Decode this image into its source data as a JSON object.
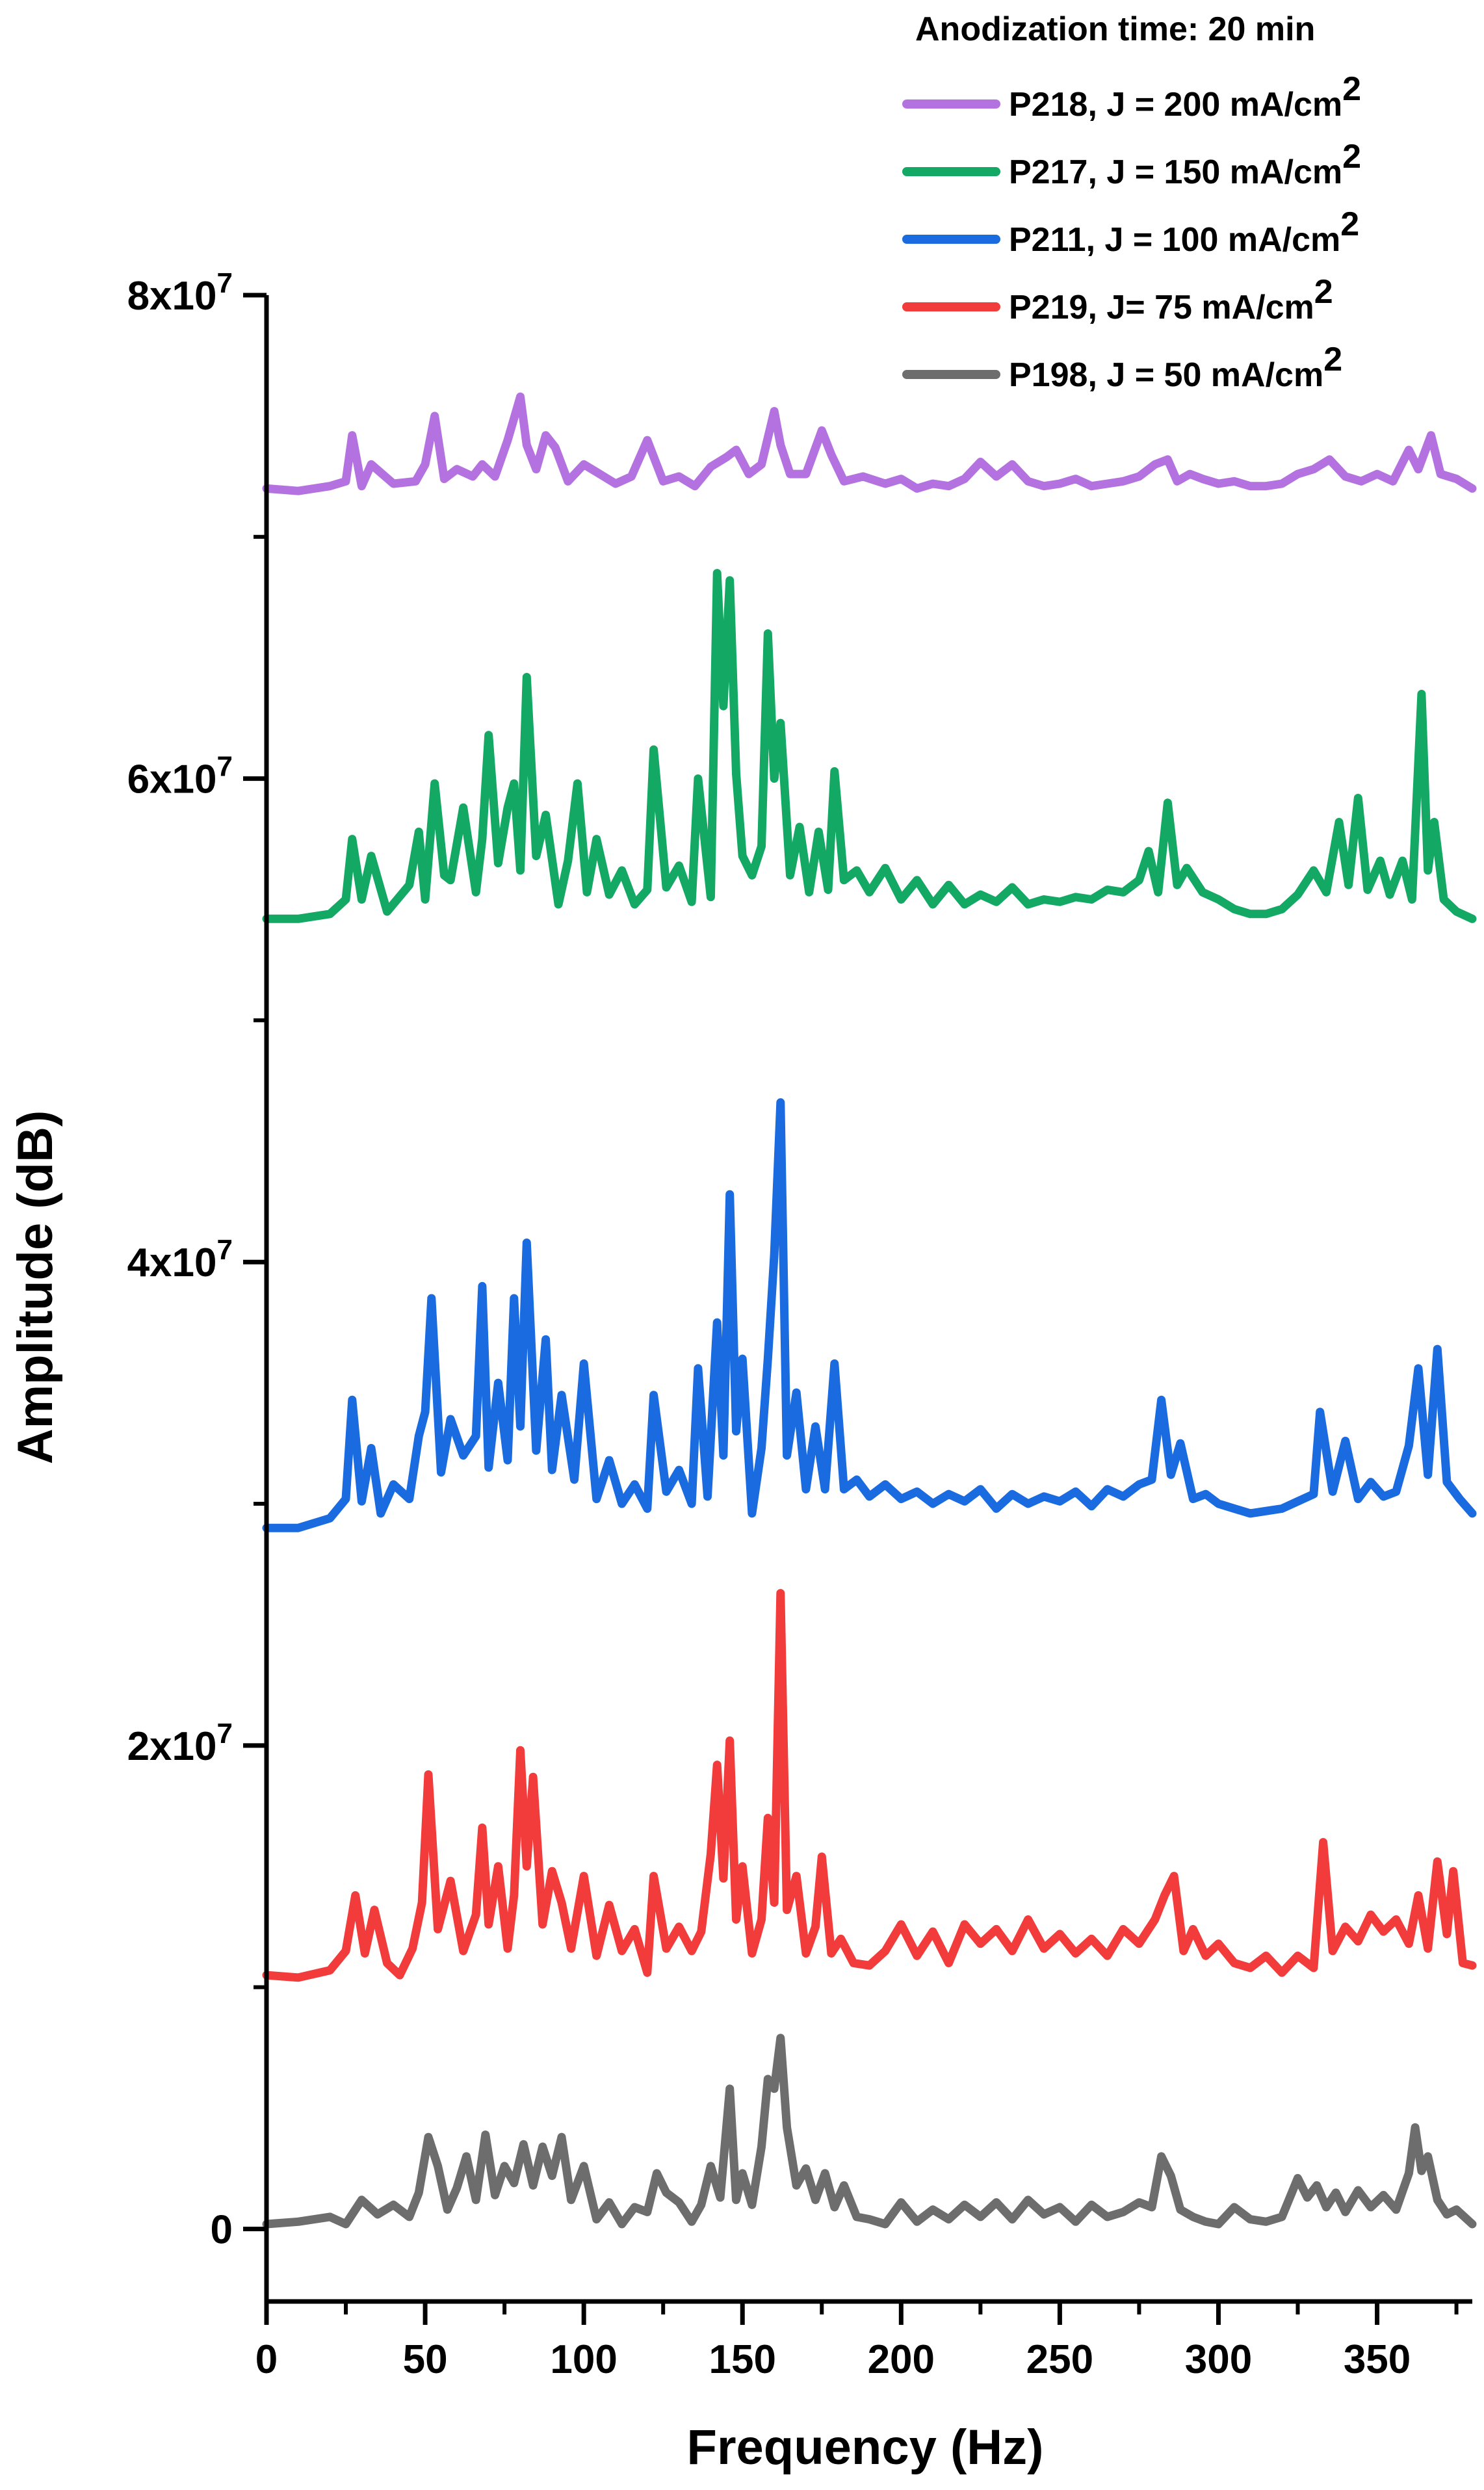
{
  "chart_data": {
    "type": "line",
    "title": "",
    "xlabel": "Frequency (Hz)",
    "ylabel": "Amplitude (dB)",
    "xlim": [
      0,
      380
    ],
    "ylim": [
      -3000000,
      80000000
    ],
    "x_ticks": [
      0,
      50,
      100,
      150,
      200,
      250,
      300,
      350
    ],
    "x_tick_labels": [
      "0",
      "50",
      "100",
      "150",
      "200",
      "250",
      "300",
      "350"
    ],
    "y_ticks": [
      0,
      20000000,
      40000000,
      60000000,
      80000000
    ],
    "y_tick_labels": [
      {
        "base": "0",
        "exp": ""
      },
      {
        "base": "2x10",
        "exp": "7"
      },
      {
        "base": "4x10",
        "exp": "7"
      },
      {
        "base": "6x10",
        "exp": "7"
      },
      {
        "base": "8x10",
        "exp": "7"
      }
    ],
    "grid": false,
    "legend": {
      "title": "Anodization time: 20 min",
      "placement": "top-right"
    },
    "series": [
      {
        "name": "P218, J = 200 mA/cm",
        "name_sup": "2",
        "color": "#b472e0",
        "x": [
          0,
          10,
          20,
          25,
          27,
          30,
          33,
          40,
          47,
          50,
          53,
          56,
          60,
          65,
          68,
          72,
          76,
          80,
          82,
          85,
          88,
          91,
          95,
          100,
          105,
          110,
          115,
          120,
          125,
          130,
          135,
          140,
          145,
          148,
          152,
          156,
          160,
          162,
          165,
          170,
          175,
          178,
          182,
          188,
          195,
          200,
          205,
          210,
          215,
          220,
          225,
          230,
          235,
          240,
          245,
          250,
          255,
          260,
          265,
          270,
          275,
          280,
          284,
          287,
          291,
          295,
          300,
          305,
          310,
          315,
          320,
          325,
          330,
          335,
          340,
          345,
          350,
          355,
          360,
          363,
          367,
          370,
          375,
          380
        ],
        "y": [
          72000000,
          71900000,
          72100000,
          72300000,
          74200000,
          72100000,
          73000000,
          72200000,
          72300000,
          73000000,
          75000000,
          72400000,
          72800000,
          72500000,
          73000000,
          72500000,
          74000000,
          75800000,
          73800000,
          72800000,
          74200000,
          73700000,
          72300000,
          73000000,
          72600000,
          72200000,
          72500000,
          74000000,
          72300000,
          72500000,
          72100000,
          72900000,
          73300000,
          73600000,
          72600000,
          73000000,
          75200000,
          73800000,
          72600000,
          72600000,
          74400000,
          73400000,
          72300000,
          72500000,
          72200000,
          72400000,
          72000000,
          72200000,
          72100000,
          72400000,
          73100000,
          72500000,
          73000000,
          72300000,
          72100000,
          72200000,
          72400000,
          72100000,
          72200000,
          72300000,
          72500000,
          73000000,
          73200000,
          72300000,
          72600000,
          72400000,
          72200000,
          72300000,
          72100000,
          72100000,
          72200000,
          72600000,
          72800000,
          73200000,
          72500000,
          72300000,
          72600000,
          72300000,
          73600000,
          72800000,
          74200000,
          72600000,
          72400000,
          72000000
        ]
      },
      {
        "name": "P217, J = 150 mA/cm",
        "name_sup": "2",
        "color": "#14a865",
        "x": [
          0,
          10,
          20,
          25,
          27,
          30,
          33,
          38,
          45,
          48,
          50,
          53,
          56,
          58,
          62,
          66,
          68,
          70,
          73,
          76,
          78,
          80,
          82,
          85,
          88,
          92,
          95,
          98,
          101,
          104,
          108,
          112,
          116,
          120,
          122,
          126,
          130,
          134,
          136,
          140,
          142,
          144,
          146,
          148,
          150,
          153,
          156,
          158,
          160,
          162,
          165,
          168,
          171,
          174,
          177,
          179,
          182,
          186,
          190,
          195,
          200,
          205,
          210,
          215,
          220,
          225,
          230,
          235,
          240,
          245,
          250,
          255,
          260,
          265,
          270,
          275,
          278,
          281,
          284,
          287,
          290,
          295,
          300,
          305,
          310,
          315,
          320,
          325,
          330,
          334,
          338,
          341,
          344,
          347,
          351,
          354,
          358,
          361,
          364,
          366,
          368,
          371,
          375,
          380
        ],
        "y": [
          54200000,
          54200000,
          54400000,
          55000000,
          57500000,
          55000000,
          56800000,
          54500000,
          55600000,
          57800000,
          55000000,
          59800000,
          56000000,
          55800000,
          58800000,
          55300000,
          57500000,
          61800000,
          56500000,
          58800000,
          59800000,
          56200000,
          64200000,
          56800000,
          58500000,
          54800000,
          56600000,
          59800000,
          55300000,
          57500000,
          55200000,
          56200000,
          54800000,
          55400000,
          61200000,
          55500000,
          56400000,
          54900000,
          60000000,
          55100000,
          68500000,
          63000000,
          68200000,
          60200000,
          56800000,
          56000000,
          57200000,
          66000000,
          60000000,
          62300000,
          56000000,
          58000000,
          55300000,
          57800000,
          55400000,
          60300000,
          55800000,
          56200000,
          55300000,
          56300000,
          55000000,
          55800000,
          54800000,
          55600000,
          54800000,
          55200000,
          54900000,
          55500000,
          54800000,
          55000000,
          54900000,
          55100000,
          55000000,
          55400000,
          55300000,
          55800000,
          57000000,
          55300000,
          59000000,
          55600000,
          56300000,
          55300000,
          55000000,
          54600000,
          54400000,
          54400000,
          54600000,
          55200000,
          56200000,
          55300000,
          58200000,
          55600000,
          59200000,
          55400000,
          56600000,
          55200000,
          56600000,
          55000000,
          63500000,
          56200000,
          58200000,
          55000000,
          54500000,
          54200000
        ]
      },
      {
        "name": "P211, J = 100 mA/cm",
        "name_sup": "2",
        "color": "#1a6ae0",
        "x": [
          0,
          10,
          20,
          25,
          27,
          30,
          33,
          36,
          40,
          45,
          48,
          50,
          52,
          55,
          58,
          62,
          66,
          68,
          70,
          73,
          76,
          78,
          80,
          82,
          85,
          88,
          90,
          93,
          97,
          100,
          104,
          108,
          112,
          116,
          120,
          122,
          126,
          130,
          134,
          136,
          139,
          142,
          144,
          146,
          148,
          150,
          153,
          156,
          158,
          160,
          162,
          164,
          167,
          170,
          173,
          176,
          179,
          182,
          186,
          190,
          195,
          200,
          205,
          210,
          215,
          220,
          225,
          230,
          235,
          240,
          245,
          250,
          255,
          260,
          265,
          270,
          275,
          279,
          282,
          285,
          288,
          292,
          296,
          300,
          305,
          310,
          315,
          320,
          325,
          330,
          332,
          336,
          340,
          344,
          348,
          352,
          356,
          360,
          363,
          366,
          369,
          372,
          376,
          380
        ],
        "y": [
          29000000,
          29000000,
          29400000,
          30200000,
          34300000,
          30100000,
          32300000,
          29600000,
          30800000,
          30200000,
          32800000,
          33800000,
          38500000,
          31300000,
          33500000,
          32000000,
          32800000,
          39000000,
          31500000,
          35000000,
          31800000,
          38500000,
          33200000,
          40800000,
          32200000,
          36800000,
          31400000,
          34500000,
          31000000,
          35800000,
          30200000,
          31800000,
          30000000,
          30800000,
          29800000,
          34500000,
          30500000,
          31400000,
          30000000,
          35600000,
          30300000,
          37500000,
          32000000,
          42800000,
          33000000,
          36000000,
          29600000,
          32300000,
          36000000,
          40300000,
          46600000,
          32000000,
          34600000,
          30600000,
          33200000,
          30600000,
          35800000,
          30600000,
          31000000,
          30300000,
          30800000,
          30200000,
          30500000,
          30000000,
          30400000,
          30100000,
          30600000,
          29800000,
          30400000,
          30000000,
          30300000,
          30100000,
          30500000,
          29900000,
          30600000,
          30300000,
          30800000,
          31000000,
          34300000,
          31200000,
          32500000,
          30200000,
          30400000,
          30000000,
          29800000,
          29600000,
          29700000,
          29800000,
          30100000,
          30400000,
          33800000,
          30500000,
          32600000,
          30200000,
          30900000,
          30300000,
          30500000,
          32400000,
          35600000,
          31200000,
          36400000,
          30900000,
          30200000,
          29600000
        ]
      },
      {
        "name": "P219, J= 75 mA/cm",
        "name_sup": "2",
        "color": "#f23b3b",
        "x": [
          0,
          10,
          20,
          25,
          28,
          31,
          34,
          38,
          42,
          46,
          49,
          51,
          54,
          58,
          62,
          66,
          68,
          70,
          73,
          76,
          78,
          80,
          82,
          84,
          87,
          90,
          93,
          96,
          100,
          104,
          108,
          112,
          116,
          120,
          122,
          126,
          130,
          134,
          137,
          140,
          142,
          144,
          146,
          148,
          150,
          153,
          156,
          158,
          160,
          162,
          164,
          167,
          170,
          173,
          175,
          178,
          181,
          185,
          190,
          195,
          200,
          205,
          210,
          215,
          220,
          225,
          230,
          235,
          240,
          245,
          250,
          255,
          260,
          265,
          270,
          275,
          280,
          283,
          286,
          289,
          292,
          296,
          300,
          305,
          310,
          315,
          320,
          325,
          330,
          333,
          336,
          340,
          344,
          348,
          352,
          356,
          360,
          363,
          366,
          369,
          372,
          374,
          377,
          380
        ],
        "y": [
          10500000,
          10400000,
          10700000,
          11500000,
          13800000,
          11400000,
          13200000,
          11000000,
          10500000,
          11600000,
          13500000,
          18800000,
          12400000,
          14400000,
          11500000,
          13000000,
          16600000,
          12600000,
          15000000,
          11600000,
          13800000,
          19800000,
          15000000,
          18700000,
          12600000,
          14800000,
          13500000,
          11600000,
          14600000,
          11300000,
          13400000,
          11500000,
          12400000,
          10600000,
          14600000,
          11600000,
          12500000,
          11500000,
          12300000,
          15500000,
          19200000,
          14500000,
          20200000,
          12800000,
          15000000,
          11400000,
          12800000,
          17000000,
          13500000,
          26300000,
          13200000,
          14600000,
          11400000,
          12500000,
          15400000,
          11400000,
          12000000,
          11000000,
          10900000,
          11500000,
          12600000,
          11300000,
          12300000,
          11000000,
          12600000,
          11800000,
          12400000,
          11500000,
          12800000,
          11600000,
          12200000,
          11400000,
          12000000,
          11300000,
          12400000,
          11800000,
          12800000,
          13800000,
          14600000,
          11500000,
          12400000,
          11300000,
          11800000,
          11000000,
          10800000,
          11300000,
          10600000,
          11300000,
          10800000,
          16000000,
          11500000,
          12500000,
          11900000,
          13000000,
          12300000,
          12800000,
          11800000,
          13800000,
          11600000,
          15200000,
          12200000,
          14800000,
          11000000,
          10900000
        ]
      },
      {
        "name": "P198, J = 50 mA/cm",
        "name_sup": "2",
        "color": "#6d6d6d",
        "x": [
          0,
          10,
          20,
          25,
          30,
          35,
          40,
          45,
          48,
          51,
          54,
          57,
          60,
          63,
          66,
          69,
          72,
          75,
          78,
          81,
          84,
          87,
          90,
          93,
          96,
          100,
          104,
          108,
          112,
          116,
          120,
          123,
          126,
          130,
          134,
          137,
          140,
          143,
          146,
          148,
          150,
          153,
          156,
          158,
          160,
          162,
          164,
          167,
          170,
          173,
          176,
          179,
          182,
          186,
          190,
          195,
          200,
          205,
          210,
          215,
          220,
          225,
          230,
          235,
          240,
          245,
          250,
          255,
          260,
          265,
          270,
          275,
          279,
          282,
          285,
          288,
          292,
          296,
          300,
          305,
          310,
          315,
          320,
          325,
          328,
          331,
          334,
          337,
          340,
          344,
          348,
          352,
          356,
          360,
          362,
          364,
          366,
          369,
          372,
          375,
          380
        ],
        "y": [
          200000,
          300000,
          500000,
          200000,
          1200000,
          600000,
          1000000,
          500000,
          1500000,
          3800000,
          2600000,
          800000,
          1700000,
          3000000,
          1200000,
          3900000,
          1400000,
          2600000,
          1900000,
          3500000,
          1800000,
          3400000,
          2200000,
          3800000,
          1200000,
          2600000,
          400000,
          1100000,
          200000,
          900000,
          700000,
          2300000,
          1500000,
          1100000,
          300000,
          1000000,
          2600000,
          1300000,
          5800000,
          1200000,
          2300000,
          1000000,
          3400000,
          6200000,
          5800000,
          7900000,
          4200000,
          1800000,
          2500000,
          1200000,
          2300000,
          900000,
          1800000,
          500000,
          400000,
          200000,
          1100000,
          300000,
          800000,
          400000,
          1000000,
          500000,
          1100000,
          400000,
          1200000,
          600000,
          900000,
          300000,
          1000000,
          500000,
          700000,
          1100000,
          900000,
          3000000,
          2200000,
          800000,
          500000,
          300000,
          200000,
          900000,
          400000,
          300000,
          500000,
          2100000,
          1300000,
          1800000,
          900000,
          1500000,
          700000,
          1600000,
          900000,
          1400000,
          800000,
          2300000,
          4200000,
          2400000,
          3000000,
          1200000,
          600000,
          800000,
          200000
        ]
      }
    ]
  }
}
